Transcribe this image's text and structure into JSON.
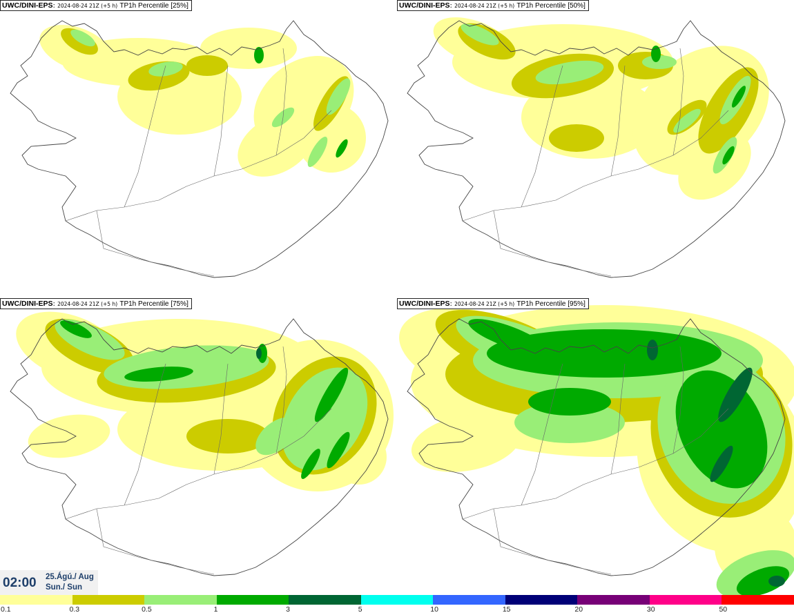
{
  "panels": [
    {
      "model": "UWC/DINI-EPS",
      "run": "2024-08-24 21Z (+5 h)",
      "variable": "TP1h Percentile [25%]",
      "percentile": 25
    },
    {
      "model": "UWC/DINI-EPS",
      "run": "2024-08-24 21Z (+5 h)",
      "variable": "TP1h Percentile [50%]",
      "percentile": 50
    },
    {
      "model": "UWC/DINI-EPS",
      "run": "2024-08-24 21Z (+5 h)",
      "variable": "TP1h Percentile [75%]",
      "percentile": 75
    },
    {
      "model": "UWC/DINI-EPS",
      "run": "2024-08-24 21Z (+5 h)",
      "variable": "TP1h Percentile [95%]",
      "percentile": 95
    }
  ],
  "valid_time": {
    "clock": "02:00",
    "date_line": "25.Ágú./ Aug",
    "day_line": "Sun./ Sun"
  },
  "colorbar": {
    "labels": [
      "0.1",
      "0.3",
      "0.5",
      "1",
      "3",
      "5",
      "10",
      "15",
      "20",
      "30",
      "50"
    ],
    "colors": [
      "#ffff99",
      "#cccc00",
      "#99ee77",
      "#00aa00",
      "#006633",
      "#00ffee",
      "#3366ff",
      "#000077",
      "#770077",
      "#ff0088",
      "#ff0000"
    ]
  },
  "map_colors": {
    "land_line": "#444444",
    "pale": "#ffff99",
    "olive": "#cccc00",
    "light_green": "#99ee77",
    "green": "#00aa00",
    "dark_green": "#006633"
  }
}
